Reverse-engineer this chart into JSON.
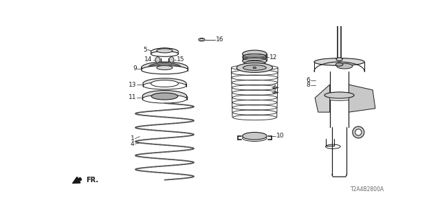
{
  "bg_color": "#ffffff",
  "line_color": "#1a1a1a",
  "diagram_code": "T2A4B2800A",
  "fr_label": "FR.",
  "figsize": [
    6.4,
    3.2
  ],
  "dpi": 100,
  "xlim": [
    0,
    640
  ],
  "ylim": [
    0,
    320
  ]
}
